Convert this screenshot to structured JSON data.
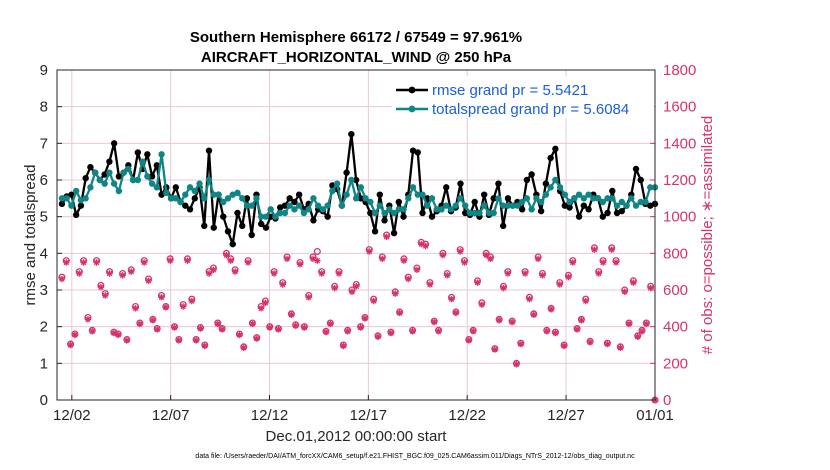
{
  "chart_data": {
    "type": "line",
    "title": "Southern Hemisphere 66172 / 67549 = 97.961%",
    "subtitle": "AIRCRAFT_HORIZONTAL_WIND @ 250 hPa",
    "xlabel": "Dec.01,2012 00:00:00 start",
    "ylabel": "rmse and totalspread",
    "y2label": "# of obs: o=possible; ∗=assimilated",
    "footer": "data file: /Users/raeder/DAI/ATM_forcXX/CAM6_setup/f.e21.FHIST_BGC.f09_025.CAM6assim.011/Diags_NTrS_2012-12/obs_diag_output.nc",
    "xlim": [
      0.75,
      31.0
    ],
    "ylim": [
      0,
      9
    ],
    "y2lim": [
      0,
      1800
    ],
    "xticks": [
      {
        "x": 1.5,
        "label": "12/02"
      },
      {
        "x": 6.5,
        "label": "12/07"
      },
      {
        "x": 11.5,
        "label": "12/12"
      },
      {
        "x": 16.5,
        "label": "12/17"
      },
      {
        "x": 21.5,
        "label": "12/22"
      },
      {
        "x": 26.5,
        "label": "12/27"
      },
      {
        "x": 31.0,
        "label": "01/01"
      }
    ],
    "yticks": [
      "0",
      "1",
      "2",
      "3",
      "4",
      "5",
      "6",
      "7",
      "8",
      "9"
    ],
    "y2ticks": [
      "0",
      "200",
      "400",
      "600",
      "800",
      "1000",
      "1200",
      "1400",
      "1600",
      "1800"
    ],
    "legend_position": "top-right",
    "series": [
      {
        "name": "rmse grand pr = 5.5421",
        "color": "#000000",
        "values": [
          5.35,
          5.55,
          5.6,
          5.05,
          5.3,
          6.05,
          6.35,
          6.2,
          6.0,
          6.15,
          6.5,
          7.0,
          6.1,
          6.2,
          6.4,
          6.0,
          6.75,
          6.3,
          6.7,
          6.1,
          6.4,
          5.6,
          5.8,
          5.5,
          5.8,
          5.4,
          5.3,
          5.2,
          5.5,
          5.8,
          4.75,
          6.8,
          4.7,
          5.6,
          5.0,
          4.6,
          4.25,
          5.1,
          4.75,
          5.5,
          4.5,
          5.6,
          4.8,
          4.7,
          5.0,
          4.95,
          5.25,
          5.3,
          5.5,
          5.4,
          5.6,
          5.2,
          5.35,
          4.9,
          5.2,
          5.15,
          5.0,
          5.85,
          5.75,
          5.3,
          6.2,
          7.25,
          6.0,
          5.5,
          5.4,
          5.1,
          4.6,
          5.6,
          4.9,
          5.3,
          4.55,
          5.4,
          5.0,
          5.6,
          6.8,
          6.75,
          5.1,
          5.5,
          5.0,
          5.15,
          5.3,
          5.8,
          5.15,
          5.25,
          5.9,
          5.1,
          5.05,
          5.4,
          5.0,
          5.6,
          5.05,
          5.5,
          5.9,
          4.75,
          5.5,
          5.3,
          5.4,
          5.2,
          6.0,
          6.15,
          5.6,
          5.15,
          5.9,
          6.6,
          6.85,
          5.7,
          5.3,
          5.25,
          5.5,
          5.0,
          5.3,
          5.2,
          5.6,
          5.5,
          5.0,
          5.1,
          5.7,
          5.1,
          5.15,
          5.3,
          5.6,
          6.3,
          6.0,
          5.35,
          5.3,
          5.35
        ]
      },
      {
        "name": "totalspread grand pr = 5.6084",
        "color": "#0f8686",
        "values": [
          5.5,
          5.5,
          5.3,
          5.7,
          5.45,
          5.5,
          5.8,
          6.2,
          6.0,
          5.9,
          6.2,
          5.9,
          5.7,
          6.2,
          6.3,
          6.0,
          6.0,
          6.5,
          6.1,
          5.9,
          5.8,
          6.7,
          5.65,
          5.5,
          5.5,
          5.4,
          5.6,
          5.8,
          5.7,
          5.9,
          5.5,
          6.0,
          5.6,
          5.6,
          5.4,
          5.5,
          5.6,
          5.65,
          5.5,
          5.3,
          5.3,
          5.5,
          5.0,
          5.0,
          5.2,
          5.0,
          5.1,
          5.1,
          5.3,
          5.2,
          5.3,
          5.1,
          5.2,
          5.5,
          5.3,
          5.2,
          5.3,
          5.7,
          5.9,
          5.3,
          5.6,
          6.0,
          5.5,
          5.8,
          5.5,
          5.4,
          5.1,
          5.3,
          5.1,
          5.2,
          5.1,
          5.2,
          5.2,
          5.5,
          5.8,
          5.6,
          5.6,
          5.3,
          5.5,
          5.2,
          5.2,
          5.3,
          5.2,
          5.3,
          5.5,
          5.3,
          5.1,
          5.1,
          5.1,
          5.3,
          5.1,
          5.1,
          5.5,
          5.3,
          5.3,
          5.3,
          5.3,
          5.4,
          5.5,
          5.2,
          5.5,
          5.4,
          5.6,
          5.8,
          6.0,
          5.8,
          5.6,
          5.4,
          5.5,
          5.6,
          5.5,
          5.6,
          5.5,
          5.5,
          5.4,
          5.5,
          5.5,
          5.3,
          5.4,
          5.3,
          5.5,
          5.3,
          5.4,
          5.4,
          5.8,
          5.8
        ]
      },
      {
        "name": "possible",
        "marker": "o",
        "axis": "right",
        "color": "#d6336c",
        "values": [
          670,
          760,
          305,
          360,
          700,
          760,
          450,
          380,
          760,
          625,
          580,
          700,
          370,
          360,
          690,
          330,
          710,
          510,
          420,
          760,
          660,
          440,
          390,
          570,
          510,
          770,
          400,
          330,
          520,
          770,
          550,
          330,
          395,
          300,
          700,
          720,
          420,
          390,
          800,
          770,
          710,
          360,
          290,
          760,
          420,
          340,
          510,
          540,
          400,
          700,
          390,
          640,
          780,
          470,
          410,
          750,
          400,
          570,
          780,
          810,
          700,
          375,
          420,
          620,
          700,
          300,
          380,
          600,
          630,
          400,
          450,
          820,
          550,
          350,
          780,
          900,
          370,
          590,
          480,
          770,
          670,
          380,
          720,
          860,
          850,
          640,
          430,
          380,
          800,
          690,
          560,
          480,
          820,
          760,
          330,
          380,
          650,
          530,
          800,
          780,
          280,
          440,
          620,
          700,
          430,
          200,
          310,
          700,
          560,
          470,
          780,
          690,
          380,
          500,
          370,
          640,
          300,
          680,
          760,
          390,
          440,
          550,
          320,
          830,
          700,
          760,
          310,
          830,
          760,
          290,
          600,
          420,
          650,
          350,
          380,
          420,
          620,
          0
        ]
      },
      {
        "name": "assimilated",
        "marker": "*",
        "axis": "right",
        "color": "#d6336c",
        "values": [
          660,
          750,
          300,
          355,
          690,
          750,
          440,
          375,
          750,
          615,
          570,
          690,
          365,
          355,
          680,
          325,
          700,
          500,
          415,
          750,
          650,
          435,
          385,
          560,
          505,
          760,
          395,
          325,
          510,
          760,
          540,
          325,
          390,
          295,
          690,
          710,
          415,
          385,
          790,
          760,
          700,
          355,
          285,
          750,
          415,
          335,
          500,
          530,
          395,
          690,
          385,
          630,
          770,
          465,
          405,
          740,
          395,
          560,
          770,
          760,
          690,
          370,
          415,
          610,
          690,
          295,
          375,
          590,
          620,
          395,
          445,
          810,
          540,
          345,
          770,
          890,
          365,
          580,
          475,
          760,
          660,
          375,
          710,
          850,
          840,
          630,
          425,
          375,
          790,
          680,
          550,
          475,
          810,
          750,
          325,
          375,
          640,
          520,
          790,
          770,
          275,
          435,
          610,
          690,
          425,
          195,
          305,
          690,
          550,
          465,
          770,
          680,
          375,
          495,
          365,
          630,
          295,
          670,
          750,
          385,
          435,
          540,
          315,
          820,
          690,
          750,
          305,
          820,
          750,
          285,
          590,
          415,
          640,
          345,
          375,
          415,
          610,
          0
        ]
      }
    ]
  }
}
